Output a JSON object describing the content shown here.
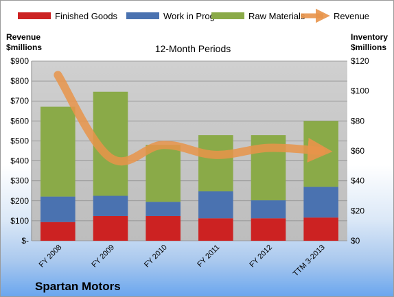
{
  "chart_data": {
    "type": "bar",
    "title": "12-Month Periods",
    "company": "Spartan Motors",
    "ylabel_left": [
      "Revenue",
      "$millions"
    ],
    "ylabel_right": [
      "Inventory",
      "$millions"
    ],
    "categories": [
      "FY 2008",
      "FY 2009",
      "FY 2010",
      "FY 2011",
      "FY 2012",
      "TTM 3-2013"
    ],
    "left_axis": {
      "ylim": [
        0,
        900
      ],
      "ticks": [
        0,
        100,
        200,
        300,
        400,
        500,
        600,
        700,
        800,
        900
      ],
      "tick_labels": [
        "$-",
        "$100",
        "$200",
        "$300",
        "$400",
        "$500",
        "$600",
        "$700",
        "$800",
        "$900"
      ]
    },
    "right_axis": {
      "ylim": [
        0,
        120
      ],
      "ticks": [
        0,
        20,
        40,
        60,
        80,
        100,
        120
      ],
      "tick_labels": [
        "$0",
        "$20",
        "$40",
        "$60",
        "$80",
        "$100",
        "$120"
      ]
    },
    "series": [
      {
        "name": "Finished Goods",
        "axis": "right",
        "kind": "stacked-bar",
        "color": "#cc2222",
        "values": [
          12.5,
          16.5,
          16.5,
          15,
          15,
          15.5
        ]
      },
      {
        "name": "Work in Progress",
        "axis": "right",
        "kind": "stacked-bar",
        "color": "#4a72b0",
        "values": [
          17,
          13.5,
          9.5,
          18,
          12,
          20.5
        ]
      },
      {
        "name": "Raw Materials",
        "axis": "right",
        "kind": "stacked-bar",
        "color": "#8aaa48",
        "values": [
          60,
          69.5,
          38,
          37.5,
          43.5,
          44
        ]
      },
      {
        "name": "Revenue",
        "axis": "left",
        "kind": "line",
        "color": "#e8944a",
        "values": [
          830,
          415,
          480,
          430,
          465,
          450
        ]
      }
    ],
    "grid": true,
    "legend_position": "top"
  }
}
